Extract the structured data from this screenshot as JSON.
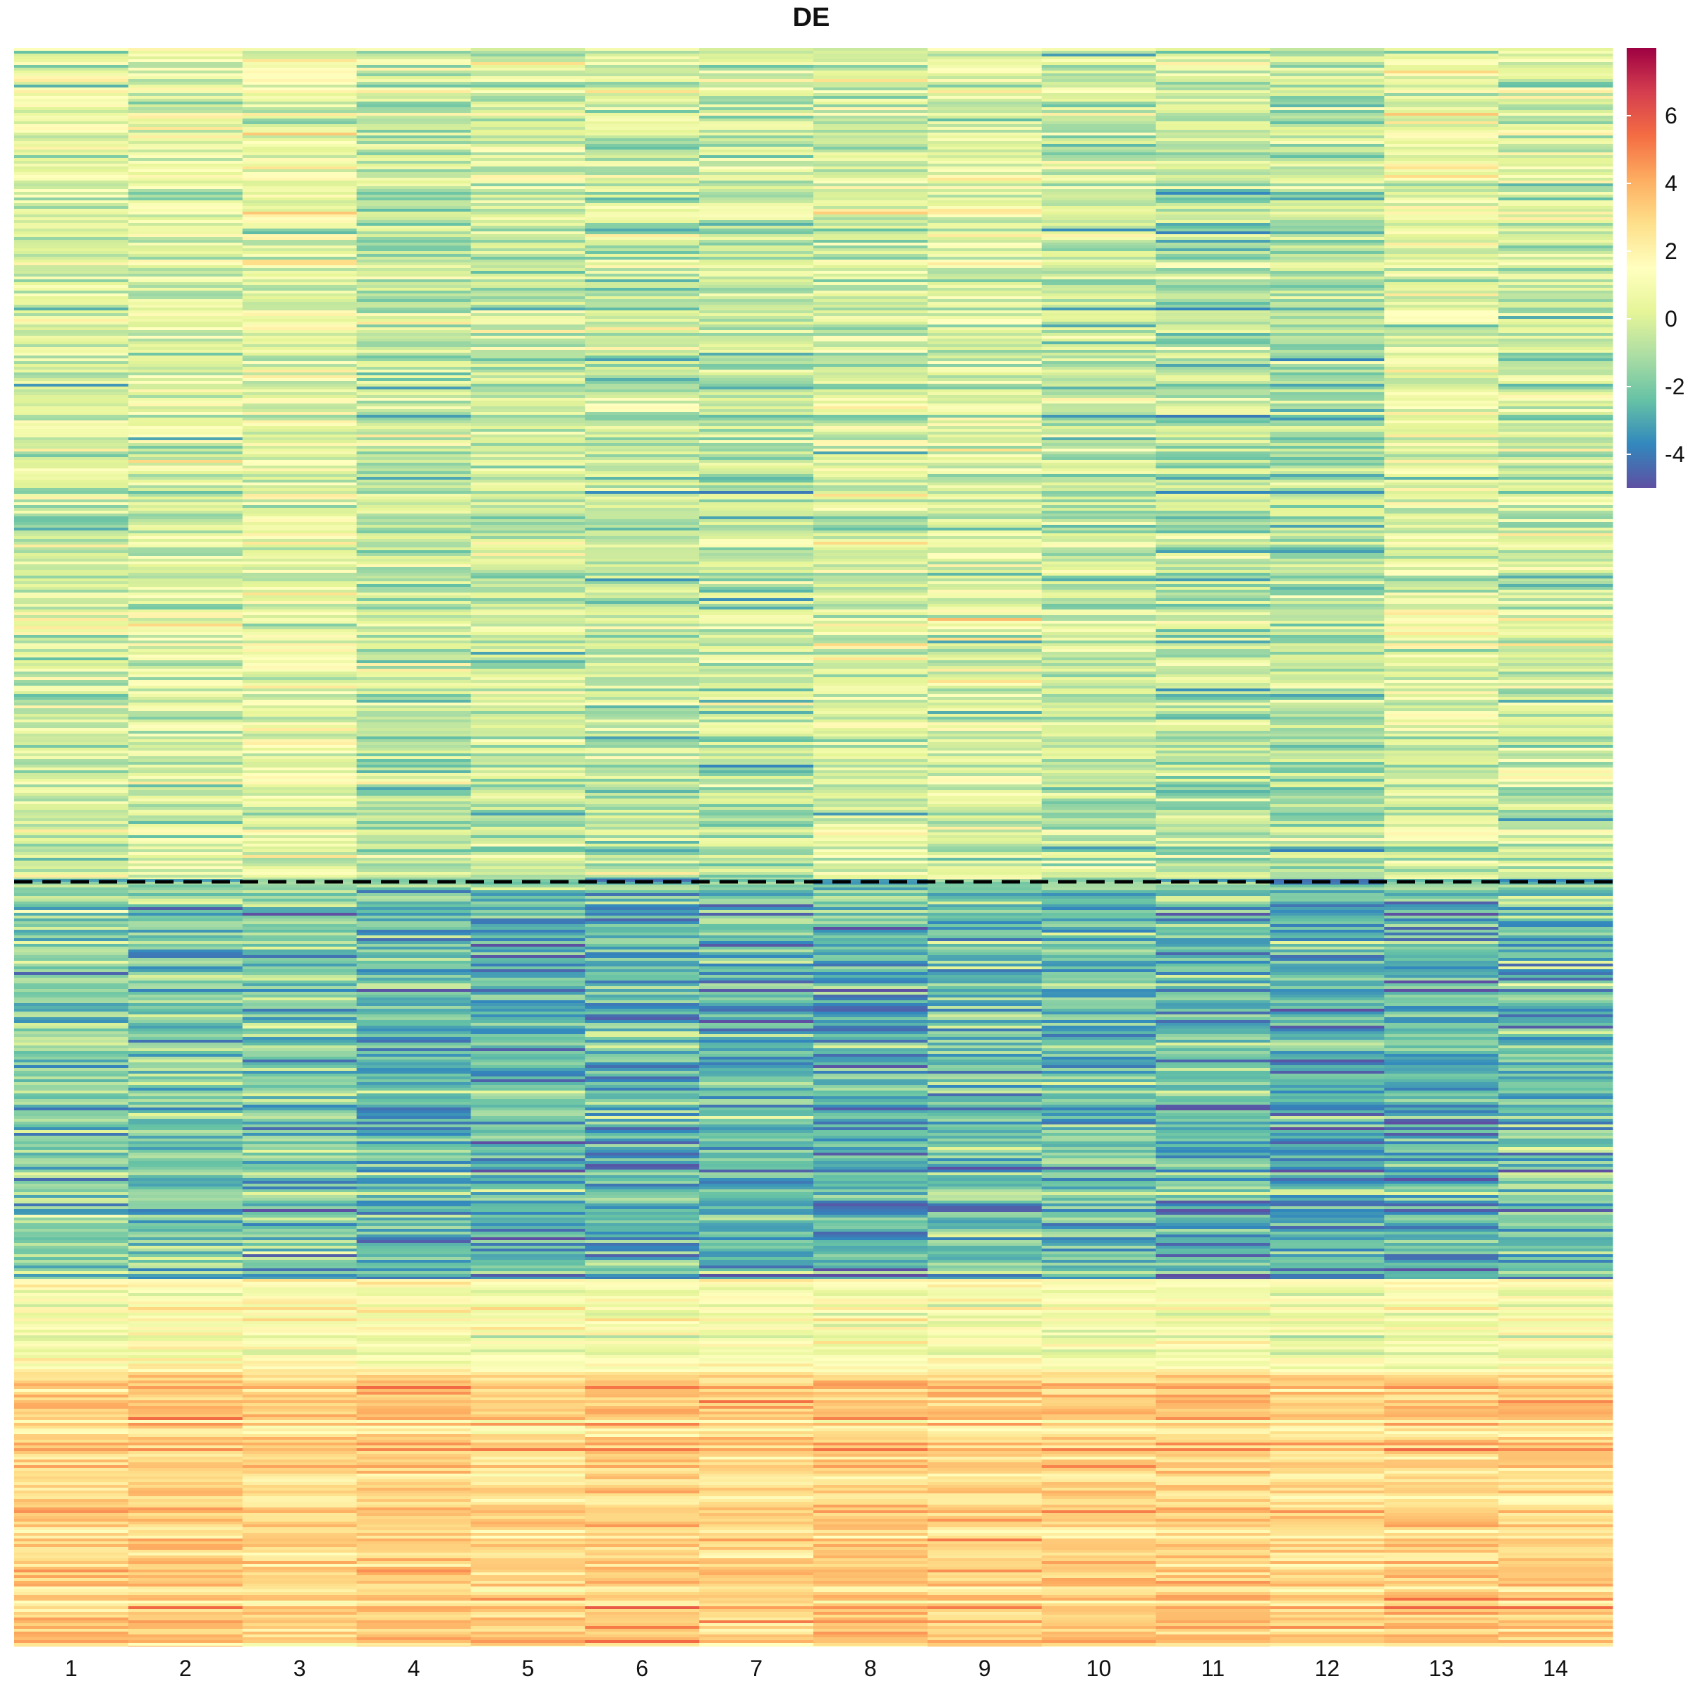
{
  "chart_data": {
    "type": "heatmap",
    "title": "DE",
    "columns": [
      "1",
      "2",
      "3",
      "4",
      "5",
      "6",
      "7",
      "8",
      "9",
      "10",
      "11",
      "12",
      "13",
      "14"
    ],
    "value_range": [
      -5,
      8
    ],
    "colorbar": {
      "ticks": [
        6,
        4,
        2,
        0,
        -2,
        -4
      ],
      "tick_labels": [
        "6",
        "4",
        "2",
        "0",
        "-2",
        "-4"
      ],
      "palette": [
        "#5E4FA2",
        "#3288BD",
        "#66C2A5",
        "#ABDDA4",
        "#E6F598",
        "#FFFFBF",
        "#FEE08B",
        "#FDAE61",
        "#F46D43",
        "#D53E4F",
        "#9E0142"
      ],
      "placement": "right"
    },
    "row_blocks": [
      {
        "name": "upper",
        "fraction": 0.52,
        "column_means": [
          0.0,
          0.3,
          0.6,
          -0.6,
          -0.3,
          -0.4,
          -0.5,
          0.0,
          0.2,
          -0.4,
          -0.7,
          -0.8,
          0.3,
          -0.1
        ]
      },
      {
        "name": "lower-blue",
        "fraction": 0.25,
        "column_means": [
          -1.8,
          -1.9,
          -2.0,
          -2.6,
          -2.9,
          -2.5,
          -2.6,
          -2.8,
          -2.3,
          -2.4,
          -2.7,
          -2.9,
          -2.8,
          -2.4
        ]
      },
      {
        "name": "yellow",
        "fraction": 0.06,
        "column_means": [
          1.2,
          1.4,
          1.5,
          1.3,
          1.2,
          1.2,
          1.3,
          1.1,
          1.2,
          1.1,
          1.0,
          0.9,
          1.1,
          1.2
        ]
      },
      {
        "name": "orange",
        "fraction": 0.17,
        "column_means": [
          3.2,
          3.3,
          3.0,
          3.4,
          3.0,
          3.3,
          3.1,
          3.4,
          3.2,
          3.3,
          3.2,
          3.0,
          3.4,
          3.2
        ]
      }
    ],
    "divider": {
      "style": "dashed",
      "after_block": "upper"
    }
  }
}
